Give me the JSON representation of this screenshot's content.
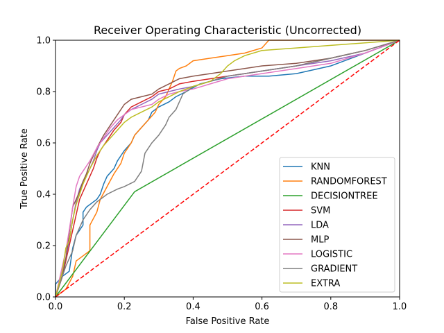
{
  "chart_data": {
    "type": "line",
    "title": "Receiver Operating Characteristic (Uncorrected)",
    "xlabel": "False Positive Rate",
    "ylabel": "True Positive Rate",
    "xlim": [
      0,
      1
    ],
    "ylim": [
      0,
      1
    ],
    "xticks": [
      "0.0",
      "0.2",
      "0.4",
      "0.6",
      "0.8",
      "1.0"
    ],
    "yticks": [
      "0.0",
      "0.2",
      "0.4",
      "0.6",
      "0.8",
      "1.0"
    ],
    "grid": false,
    "legend_position": "lower-right",
    "series": [
      {
        "name": "KNN",
        "color": "#1f77b4",
        "x": [
          0,
          0,
          0.02,
          0.04,
          0.05,
          0.06,
          0.08,
          0.08,
          0.09,
          0.1,
          0.12,
          0.13,
          0.14,
          0.15,
          0.17,
          0.18,
          0.19,
          0.2,
          0.22,
          0.23,
          0.25,
          0.27,
          0.28,
          0.3,
          0.33,
          0.35,
          0.38,
          0.42,
          0.48,
          0.55,
          0.62,
          0.7,
          0.8,
          0.9,
          1.0
        ],
        "y": [
          0,
          0.05,
          0.08,
          0.1,
          0.19,
          0.24,
          0.28,
          0.33,
          0.35,
          0.36,
          0.38,
          0.4,
          0.44,
          0.47,
          0.5,
          0.53,
          0.55,
          0.57,
          0.6,
          0.63,
          0.66,
          0.69,
          0.72,
          0.74,
          0.76,
          0.78,
          0.8,
          0.83,
          0.85,
          0.86,
          0.86,
          0.87,
          0.9,
          0.95,
          1.0
        ]
      },
      {
        "name": "RANDOMFOREST",
        "color": "#ff7f0e",
        "x": [
          0,
          0.03,
          0.05,
          0.06,
          0.08,
          0.1,
          0.1,
          0.12,
          0.13,
          0.15,
          0.17,
          0.19,
          0.2,
          0.22,
          0.23,
          0.25,
          0.27,
          0.29,
          0.3,
          0.32,
          0.33,
          0.34,
          0.35,
          0.36,
          0.38,
          0.4,
          0.45,
          0.5,
          0.55,
          0.6,
          0.62,
          0.65,
          0.7,
          0.8,
          1.0
        ],
        "y": [
          0,
          0.03,
          0.08,
          0.14,
          0.16,
          0.18,
          0.28,
          0.33,
          0.38,
          0.43,
          0.48,
          0.52,
          0.56,
          0.6,
          0.63,
          0.66,
          0.69,
          0.72,
          0.75,
          0.78,
          0.81,
          0.84,
          0.88,
          0.89,
          0.9,
          0.92,
          0.93,
          0.94,
          0.95,
          0.97,
          1.0,
          1.0,
          1.0,
          1.0,
          1.0
        ]
      },
      {
        "name": "DECISIONTREE",
        "color": "#2ca02c",
        "x": [
          0,
          0.23,
          1.0
        ],
        "y": [
          0,
          0.41,
          1.0
        ]
      },
      {
        "name": "SVM",
        "color": "#d62728",
        "x": [
          0,
          0.02,
          0.03,
          0.04,
          0.05,
          0.06,
          0.07,
          0.08,
          0.09,
          0.1,
          0.11,
          0.12,
          0.13,
          0.15,
          0.17,
          0.19,
          0.2,
          0.22,
          0.25,
          0.28,
          0.3,
          0.33,
          0.36,
          0.4,
          0.45,
          0.5,
          0.55,
          0.6,
          0.7,
          0.8,
          0.9,
          1.0
        ],
        "y": [
          0,
          0.08,
          0.14,
          0.2,
          0.26,
          0.32,
          0.38,
          0.41,
          0.44,
          0.47,
          0.5,
          0.54,
          0.57,
          0.61,
          0.65,
          0.68,
          0.71,
          0.74,
          0.76,
          0.78,
          0.8,
          0.81,
          0.83,
          0.84,
          0.85,
          0.86,
          0.87,
          0.88,
          0.9,
          0.93,
          0.96,
          1.0
        ]
      },
      {
        "name": "LDA",
        "color": "#9467bd",
        "x": [
          0,
          0.02,
          0.03,
          0.04,
          0.05,
          0.06,
          0.07,
          0.08,
          0.1,
          0.11,
          0.12,
          0.13,
          0.15,
          0.17,
          0.19,
          0.2,
          0.22,
          0.25,
          0.28,
          0.3,
          0.33,
          0.36,
          0.4,
          0.45,
          0.5,
          0.55,
          0.6,
          0.7,
          0.8,
          0.9,
          1.0
        ],
        "y": [
          0,
          0.1,
          0.15,
          0.22,
          0.3,
          0.37,
          0.42,
          0.45,
          0.5,
          0.53,
          0.57,
          0.6,
          0.63,
          0.66,
          0.69,
          0.71,
          0.73,
          0.75,
          0.77,
          0.79,
          0.8,
          0.81,
          0.82,
          0.84,
          0.86,
          0.87,
          0.88,
          0.9,
          0.92,
          0.95,
          1.0
        ]
      },
      {
        "name": "MLP",
        "color": "#8c564b",
        "x": [
          0,
          0.02,
          0.03,
          0.04,
          0.05,
          0.06,
          0.07,
          0.08,
          0.09,
          0.1,
          0.12,
          0.14,
          0.16,
          0.18,
          0.2,
          0.22,
          0.25,
          0.28,
          0.3,
          0.33,
          0.36,
          0.4,
          0.45,
          0.5,
          0.55,
          0.6,
          0.7,
          0.8,
          0.9,
          1.0
        ],
        "y": [
          0,
          0.08,
          0.15,
          0.25,
          0.35,
          0.38,
          0.41,
          0.45,
          0.48,
          0.52,
          0.58,
          0.63,
          0.67,
          0.71,
          0.75,
          0.77,
          0.78,
          0.79,
          0.81,
          0.83,
          0.85,
          0.86,
          0.87,
          0.88,
          0.89,
          0.9,
          0.91,
          0.93,
          0.96,
          1.0
        ]
      },
      {
        "name": "LOGISTIC",
        "color": "#e377c2",
        "x": [
          0,
          0.01,
          0.02,
          0.03,
          0.04,
          0.05,
          0.06,
          0.07,
          0.08,
          0.09,
          0.1,
          0.12,
          0.14,
          0.16,
          0.18,
          0.2,
          0.22,
          0.25,
          0.28,
          0.3,
          0.33,
          0.36,
          0.4,
          0.45,
          0.5,
          0.55,
          0.6,
          0.7,
          0.8,
          0.9,
          1.0
        ],
        "y": [
          0,
          0.06,
          0.12,
          0.18,
          0.26,
          0.35,
          0.43,
          0.47,
          0.49,
          0.51,
          0.53,
          0.58,
          0.62,
          0.66,
          0.69,
          0.71,
          0.73,
          0.74,
          0.75,
          0.77,
          0.79,
          0.8,
          0.81,
          0.83,
          0.85,
          0.86,
          0.87,
          0.89,
          0.91,
          0.95,
          1.0
        ]
      },
      {
        "name": "GRADIENT",
        "color": "#7f7f7f",
        "x": [
          0,
          0.02,
          0.03,
          0.05,
          0.06,
          0.08,
          0.1,
          0.12,
          0.15,
          0.18,
          0.2,
          0.23,
          0.25,
          0.26,
          0.28,
          0.3,
          0.32,
          0.33,
          0.35,
          0.36,
          0.37,
          0.4,
          0.45,
          0.5,
          0.55,
          0.6,
          0.7,
          0.8,
          0.9,
          1.0
        ],
        "y": [
          0,
          0.08,
          0.12,
          0.18,
          0.24,
          0.3,
          0.34,
          0.37,
          0.4,
          0.42,
          0.43,
          0.45,
          0.49,
          0.56,
          0.6,
          0.63,
          0.67,
          0.7,
          0.73,
          0.76,
          0.79,
          0.82,
          0.84,
          0.86,
          0.87,
          0.88,
          0.9,
          0.93,
          0.96,
          1.0
        ]
      },
      {
        "name": "EXTRA",
        "color": "#bcbd22",
        "x": [
          0,
          0.01,
          0.02,
          0.03,
          0.04,
          0.05,
          0.06,
          0.07,
          0.08,
          0.1,
          0.12,
          0.14,
          0.16,
          0.18,
          0.2,
          0.22,
          0.25,
          0.28,
          0.3,
          0.33,
          0.36,
          0.4,
          0.45,
          0.48,
          0.5,
          0.52,
          0.55,
          0.6,
          0.7,
          0.8,
          0.9,
          1.0
        ],
        "y": [
          0,
          0.05,
          0.1,
          0.19,
          0.22,
          0.3,
          0.36,
          0.4,
          0.44,
          0.5,
          0.55,
          0.59,
          0.62,
          0.65,
          0.68,
          0.7,
          0.72,
          0.74,
          0.76,
          0.78,
          0.8,
          0.82,
          0.84,
          0.87,
          0.9,
          0.92,
          0.94,
          0.96,
          0.97,
          0.98,
          0.99,
          1.0
        ]
      }
    ],
    "reference_line": {
      "x": [
        0,
        1
      ],
      "y": [
        0,
        1
      ],
      "color": "#ff0000",
      "style": "dashed"
    }
  }
}
